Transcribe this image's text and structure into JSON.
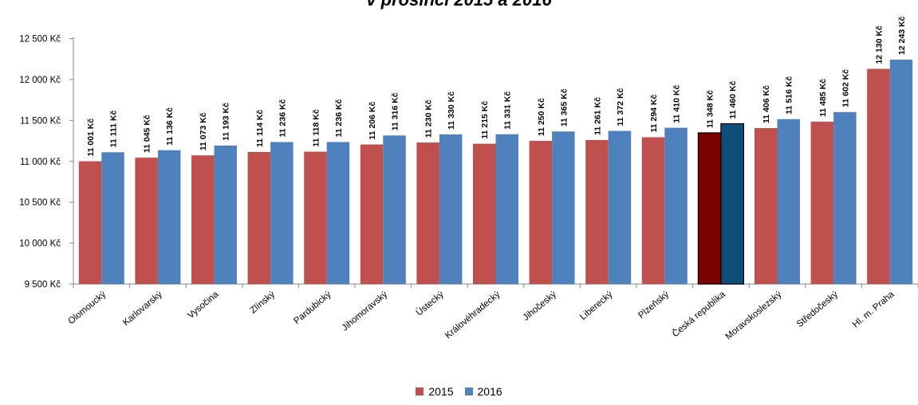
{
  "chart_data": {
    "type": "bar",
    "title": "v prosinci 2015 a 2016",
    "categories": [
      "Olomoucký",
      "Karlovarský",
      "Vysočina",
      "Zlínský",
      "Pardubický",
      "Jihomoravský",
      "Ústecký",
      "Královéhradecký",
      "Jihočeský",
      "Liberecký",
      "Plzeňský",
      "Česká republika",
      "Moravskoslezský",
      "Středočeský",
      "Hl. m. Praha"
    ],
    "series": [
      {
        "name": "2015",
        "color": "#c0504d",
        "values": [
          11001,
          11045,
          11073,
          11114,
          11118,
          11206,
          11230,
          11215,
          11250,
          11261,
          11294,
          11348,
          11406,
          11485,
          12130
        ],
        "labels": [
          "11 001 Kč",
          "11 045 Kč",
          "11 073 Kč",
          "11 114 Kč",
          "11 118 Kč",
          "11 206 Kč",
          "11 230 Kč",
          "11 215 Kč",
          "11 250 Kč",
          "11 261 Kč",
          "11 294 Kč",
          "11 348 Kč",
          "11 406 Kč",
          "11 485 Kč",
          "12 130 Kč"
        ]
      },
      {
        "name": "2016",
        "color": "#4f81bd",
        "values": [
          11111,
          11136,
          11193,
          11236,
          11236,
          11316,
          11330,
          11331,
          11365,
          11372,
          11410,
          11460,
          11516,
          11602,
          12243
        ],
        "labels": [
          "11 111 Kč",
          "11 136 Kč",
          "11 193 Kč",
          "11 236 Kč",
          "11 236 Kč",
          "11 316 Kč",
          "11 330 Kč",
          "11 331 Kč",
          "11 365 Kč",
          "11 372 Kč",
          "11 410 Kč",
          "11 460 Kč",
          "11 516 Kč",
          "11 602 Kč",
          "12 243 Kč"
        ]
      }
    ],
    "highlight": {
      "category": "Česká republika",
      "colors": {
        "2015": "#7b0000",
        "2016": "#0f4d7a"
      }
    },
    "ylim": [
      9500,
      12500
    ],
    "yticks": [
      9500,
      10000,
      10500,
      11000,
      11500,
      12000,
      12500
    ],
    "ytick_labels": [
      "9 500 Kč",
      "10 000 Kč",
      "10 500 Kč",
      "11 000 Kč",
      "11 500 Kč",
      "12 000 Kč",
      "12 500 Kč"
    ],
    "grid": false,
    "legend_position": "bottom"
  }
}
